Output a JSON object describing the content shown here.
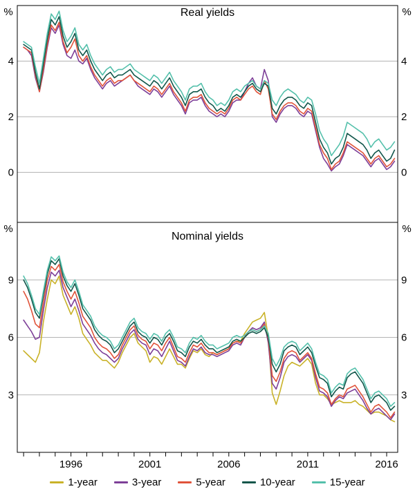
{
  "colors": {
    "grid": "#b3b3b3",
    "frame": "#000000",
    "text": "#000000",
    "background": "#ffffff"
  },
  "legend": {
    "items": [
      {
        "label": "1-year",
        "color": "#c9b228"
      },
      {
        "label": "3-year",
        "color": "#7d3f98"
      },
      {
        "label": "5-year",
        "color": "#e0533a"
      },
      {
        "label": "10-year",
        "color": "#11564a"
      },
      {
        "label": "15-year",
        "color": "#54c0ab"
      }
    ]
  },
  "chart_data": [
    {
      "type": "line",
      "title": "Real yields",
      "unit": "%",
      "xlim": [
        1992.6,
        2016.7
      ],
      "ylim": [
        -1.8,
        6.0
      ],
      "yticks": [
        0,
        2,
        4
      ],
      "xticks": [
        1996,
        2001,
        2006,
        2011,
        2016
      ],
      "x": [
        1993,
        1993.25,
        1993.5,
        1993.75,
        1994,
        1994.25,
        1994.5,
        1994.75,
        1995,
        1995.25,
        1995.5,
        1995.75,
        1996,
        1996.25,
        1996.5,
        1996.75,
        1997,
        1997.25,
        1997.5,
        1997.75,
        1998,
        1998.25,
        1998.5,
        1998.75,
        1999,
        1999.25,
        1999.5,
        1999.75,
        2000,
        2000.25,
        2000.5,
        2000.75,
        2001,
        2001.25,
        2001.5,
        2001.75,
        2002,
        2002.25,
        2002.5,
        2002.75,
        2003,
        2003.25,
        2003.5,
        2003.75,
        2004,
        2004.25,
        2004.5,
        2004.75,
        2005,
        2005.25,
        2005.5,
        2005.75,
        2006,
        2006.25,
        2006.5,
        2006.75,
        2007,
        2007.25,
        2007.5,
        2007.75,
        2008,
        2008.25,
        2008.5,
        2008.75,
        2009,
        2009.25,
        2009.5,
        2009.75,
        2010,
        2010.25,
        2010.5,
        2010.75,
        2011,
        2011.25,
        2011.5,
        2011.75,
        2012,
        2012.25,
        2012.5,
        2012.75,
        2013,
        2013.25,
        2013.5,
        2013.75,
        2014,
        2014.25,
        2014.5,
        2014.75,
        2015,
        2015.25,
        2015.5,
        2015.75,
        2016,
        2016.25,
        2016.5
      ],
      "series": [
        {
          "name": "3-year",
          "color": "#7d3f98",
          "values": [
            4.5,
            4.4,
            4.2,
            3.4,
            2.9,
            3.6,
            4.5,
            5.2,
            5.0,
            5.3,
            4.6,
            4.2,
            4.1,
            4.4,
            4.0,
            3.9,
            4.1,
            3.7,
            3.4,
            3.2,
            3.0,
            3.2,
            3.3,
            3.1,
            3.2,
            3.3,
            3.4,
            3.5,
            3.3,
            3.1,
            3.0,
            2.9,
            2.8,
            3.0,
            2.9,
            2.7,
            2.9,
            3.1,
            2.8,
            2.6,
            2.4,
            2.1,
            2.5,
            2.6,
            2.6,
            2.7,
            2.4,
            2.2,
            2.1,
            2.0,
            2.1,
            2.0,
            2.2,
            2.5,
            2.6,
            2.6,
            2.9,
            3.2,
            3.4,
            3.1,
            3.0,
            3.7,
            3.3,
            2.0,
            1.8,
            2.1,
            2.3,
            2.4,
            2.4,
            2.3,
            2.1,
            2.0,
            2.2,
            2.1,
            1.5,
            0.9,
            0.5,
            0.3,
            0.05,
            0.2,
            0.3,
            0.6,
            1.0,
            0.9,
            0.8,
            0.7,
            0.6,
            0.4,
            0.2,
            0.4,
            0.5,
            0.3,
            0.1,
            0.2,
            0.4
          ]
        },
        {
          "name": "5-year",
          "color": "#e0533a",
          "values": [
            4.5,
            4.4,
            4.3,
            3.5,
            2.9,
            3.7,
            4.6,
            5.3,
            5.1,
            5.4,
            4.7,
            4.3,
            4.5,
            4.8,
            4.2,
            4.0,
            4.2,
            3.8,
            3.5,
            3.3,
            3.1,
            3.3,
            3.4,
            3.2,
            3.3,
            3.3,
            3.4,
            3.5,
            3.3,
            3.2,
            3.1,
            3.0,
            2.9,
            3.1,
            3.0,
            2.8,
            3.0,
            3.2,
            2.9,
            2.7,
            2.5,
            2.2,
            2.6,
            2.7,
            2.7,
            2.8,
            2.5,
            2.3,
            2.2,
            2.1,
            2.2,
            2.1,
            2.3,
            2.6,
            2.7,
            2.6,
            2.8,
            3.0,
            3.1,
            2.9,
            2.8,
            3.3,
            3.0,
            2.1,
            1.9,
            2.2,
            2.4,
            2.5,
            2.5,
            2.4,
            2.2,
            2.1,
            2.3,
            2.2,
            1.6,
            1.0,
            0.7,
            0.5,
            0.1,
            0.3,
            0.4,
            0.7,
            1.1,
            1.0,
            0.9,
            0.8,
            0.7,
            0.5,
            0.3,
            0.5,
            0.6,
            0.4,
            0.2,
            0.3,
            0.5
          ]
        },
        {
          "name": "10-year",
          "color": "#11564a",
          "values": [
            4.6,
            4.5,
            4.4,
            3.6,
            3.0,
            3.9,
            4.8,
            5.5,
            5.3,
            5.6,
            4.9,
            4.5,
            4.7,
            5.0,
            4.4,
            4.2,
            4.4,
            4.0,
            3.7,
            3.5,
            3.3,
            3.5,
            3.6,
            3.4,
            3.5,
            3.5,
            3.6,
            3.7,
            3.5,
            3.4,
            3.3,
            3.2,
            3.1,
            3.3,
            3.2,
            3.0,
            3.2,
            3.4,
            3.1,
            2.9,
            2.7,
            2.4,
            2.8,
            2.9,
            2.9,
            3.0,
            2.7,
            2.5,
            2.4,
            2.2,
            2.3,
            2.2,
            2.4,
            2.7,
            2.8,
            2.7,
            2.9,
            3.1,
            3.2,
            3.0,
            2.9,
            3.2,
            3.1,
            2.3,
            2.1,
            2.4,
            2.6,
            2.7,
            2.7,
            2.6,
            2.4,
            2.3,
            2.5,
            2.4,
            1.8,
            1.2,
            0.9,
            0.7,
            0.3,
            0.5,
            0.6,
            0.9,
            1.4,
            1.3,
            1.2,
            1.1,
            1.0,
            0.8,
            0.5,
            0.7,
            0.8,
            0.6,
            0.4,
            0.5,
            0.8
          ]
        },
        {
          "name": "15-year",
          "color": "#54c0ab",
          "values": [
            4.7,
            4.6,
            4.5,
            3.8,
            3.2,
            4.1,
            5.0,
            5.7,
            5.5,
            5.8,
            5.1,
            4.7,
            4.9,
            5.2,
            4.6,
            4.4,
            4.6,
            4.2,
            3.9,
            3.7,
            3.5,
            3.7,
            3.8,
            3.6,
            3.7,
            3.7,
            3.8,
            3.9,
            3.7,
            3.6,
            3.5,
            3.4,
            3.3,
            3.5,
            3.4,
            3.2,
            3.4,
            3.6,
            3.3,
            3.1,
            2.9,
            2.6,
            3.0,
            3.1,
            3.1,
            3.2,
            2.9,
            2.7,
            2.6,
            2.4,
            2.5,
            2.4,
            2.6,
            2.9,
            3.0,
            2.9,
            3.1,
            3.2,
            3.3,
            3.1,
            3.0,
            3.3,
            3.2,
            2.6,
            2.4,
            2.7,
            2.9,
            3.0,
            2.9,
            2.8,
            2.6,
            2.5,
            2.7,
            2.6,
            2.1,
            1.5,
            1.2,
            1.0,
            0.6,
            0.8,
            1.0,
            1.3,
            1.8,
            1.7,
            1.6,
            1.5,
            1.4,
            1.2,
            0.9,
            1.1,
            1.2,
            1.0,
            0.8,
            0.9,
            1.1
          ]
        }
      ]
    },
    {
      "type": "line",
      "title": "Nominal yields",
      "unit": "%",
      "xlim": [
        1992.6,
        2016.7
      ],
      "ylim": [
        0,
        12
      ],
      "yticks": [
        3,
        6,
        9
      ],
      "xticks": [
        1996,
        2001,
        2006,
        2011,
        2016
      ],
      "x": [
        1993,
        1993.25,
        1993.5,
        1993.75,
        1994,
        1994.25,
        1994.5,
        1994.75,
        1995,
        1995.25,
        1995.5,
        1995.75,
        1996,
        1996.25,
        1996.5,
        1996.75,
        1997,
        1997.25,
        1997.5,
        1997.75,
        1998,
        1998.25,
        1998.5,
        1998.75,
        1999,
        1999.25,
        1999.5,
        1999.75,
        2000,
        2000.25,
        2000.5,
        2000.75,
        2001,
        2001.25,
        2001.5,
        2001.75,
        2002,
        2002.25,
        2002.5,
        2002.75,
        2003,
        2003.25,
        2003.5,
        2003.75,
        2004,
        2004.25,
        2004.5,
        2004.75,
        2005,
        2005.25,
        2005.5,
        2005.75,
        2006,
        2006.25,
        2006.5,
        2006.75,
        2007,
        2007.25,
        2007.5,
        2007.75,
        2008,
        2008.25,
        2008.5,
        2008.75,
        2009,
        2009.25,
        2009.5,
        2009.75,
        2010,
        2010.25,
        2010.5,
        2010.75,
        2011,
        2011.25,
        2011.5,
        2011.75,
        2012,
        2012.25,
        2012.5,
        2012.75,
        2013,
        2013.25,
        2013.5,
        2013.75,
        2014,
        2014.25,
        2014.5,
        2014.75,
        2015,
        2015.25,
        2015.5,
        2015.75,
        2016,
        2016.25,
        2016.5
      ],
      "series": [
        {
          "name": "1-year",
          "color": "#c9b228",
          "values": [
            5.3,
            5.1,
            4.9,
            4.7,
            5.2,
            6.8,
            8.0,
            9.0,
            8.8,
            9.2,
            8.2,
            7.7,
            7.2,
            7.6,
            7.0,
            6.2,
            5.9,
            5.6,
            5.2,
            5.0,
            4.8,
            4.8,
            4.6,
            4.4,
            4.7,
            5.2,
            5.6,
            6.0,
            6.2,
            5.7,
            5.5,
            5.3,
            4.7,
            5.0,
            4.9,
            4.6,
            5.0,
            5.4,
            5.0,
            4.6,
            4.6,
            4.4,
            4.9,
            5.3,
            5.2,
            5.4,
            5.1,
            5.0,
            5.2,
            5.1,
            5.2,
            5.3,
            5.4,
            5.7,
            5.8,
            5.8,
            6.2,
            6.5,
            6.8,
            6.9,
            7.0,
            7.3,
            6.0,
            3.1,
            2.5,
            3.2,
            4.0,
            4.5,
            4.7,
            4.6,
            4.5,
            4.7,
            4.9,
            4.6,
            3.6,
            3.0,
            3.0,
            2.8,
            2.5,
            2.6,
            2.7,
            2.6,
            2.6,
            2.6,
            2.7,
            2.5,
            2.4,
            2.2,
            2.0,
            2.1,
            2.1,
            2.0,
            1.9,
            1.7,
            1.6
          ]
        },
        {
          "name": "3-year",
          "color": "#7d3f98",
          "values": [
            6.9,
            6.6,
            6.3,
            5.9,
            6.0,
            7.4,
            8.6,
            9.4,
            9.2,
            9.5,
            8.6,
            8.1,
            7.6,
            8.0,
            7.4,
            6.7,
            6.4,
            6.1,
            5.7,
            5.4,
            5.2,
            5.1,
            4.9,
            4.7,
            4.9,
            5.4,
            5.8,
            6.2,
            6.4,
            5.9,
            5.7,
            5.6,
            5.1,
            5.4,
            5.3,
            5.0,
            5.4,
            5.8,
            5.3,
            4.8,
            4.7,
            4.5,
            5.0,
            5.4,
            5.3,
            5.5,
            5.2,
            5.1,
            5.1,
            5.0,
            5.1,
            5.2,
            5.3,
            5.6,
            5.7,
            5.6,
            6.0,
            6.3,
            6.5,
            6.4,
            6.5,
            6.8,
            5.7,
            3.6,
            3.3,
            3.9,
            4.7,
            5.0,
            5.1,
            5.0,
            4.7,
            4.9,
            5.1,
            4.8,
            3.9,
            3.2,
            3.1,
            2.9,
            2.4,
            2.7,
            2.9,
            2.8,
            3.1,
            3.2,
            3.3,
            3.0,
            2.7,
            2.3,
            2.0,
            2.2,
            2.3,
            2.1,
            1.9,
            1.7,
            2.0
          ]
        },
        {
          "name": "5-year",
          "color": "#e0533a",
          "values": [
            8.4,
            8.0,
            7.4,
            6.7,
            6.5,
            7.8,
            9.0,
            9.7,
            9.5,
            9.8,
            8.9,
            8.4,
            8.0,
            8.4,
            7.8,
            7.1,
            6.8,
            6.5,
            6.0,
            5.7,
            5.5,
            5.4,
            5.2,
            4.9,
            5.1,
            5.6,
            6.0,
            6.4,
            6.6,
            6.1,
            5.9,
            5.8,
            5.4,
            5.7,
            5.6,
            5.3,
            5.7,
            6.0,
            5.5,
            5.0,
            4.9,
            4.7,
            5.2,
            5.6,
            5.5,
            5.7,
            5.4,
            5.2,
            5.2,
            5.1,
            5.2,
            5.3,
            5.4,
            5.7,
            5.8,
            5.7,
            6.0,
            6.3,
            6.4,
            6.3,
            6.4,
            6.7,
            5.9,
            4.0,
            3.7,
            4.2,
            4.9,
            5.2,
            5.3,
            5.2,
            4.8,
            5.0,
            5.2,
            4.9,
            4.1,
            3.4,
            3.3,
            3.1,
            2.5,
            2.8,
            3.0,
            2.9,
            3.3,
            3.4,
            3.5,
            3.2,
            2.9,
            2.5,
            2.1,
            2.4,
            2.5,
            2.3,
            2.1,
            1.8,
            2.1
          ]
        },
        {
          "name": "10-year",
          "color": "#11564a",
          "values": [
            9.0,
            8.6,
            8.0,
            7.3,
            7.0,
            8.2,
            9.3,
            10.0,
            9.8,
            10.1,
            9.2,
            8.7,
            8.4,
            8.8,
            8.2,
            7.5,
            7.2,
            6.9,
            6.4,
            6.1,
            5.9,
            5.8,
            5.6,
            5.2,
            5.4,
            5.8,
            6.2,
            6.6,
            6.8,
            6.3,
            6.1,
            6.0,
            5.7,
            6.0,
            5.9,
            5.6,
            6.0,
            6.2,
            5.8,
            5.3,
            5.2,
            5.0,
            5.5,
            5.8,
            5.7,
            5.9,
            5.6,
            5.4,
            5.4,
            5.2,
            5.3,
            5.4,
            5.5,
            5.8,
            5.9,
            5.8,
            6.0,
            6.2,
            6.3,
            6.2,
            6.3,
            6.5,
            6.0,
            4.6,
            4.2,
            4.6,
            5.3,
            5.5,
            5.6,
            5.5,
            5.1,
            5.3,
            5.5,
            5.2,
            4.5,
            3.9,
            3.8,
            3.6,
            2.9,
            3.2,
            3.4,
            3.3,
            3.9,
            4.1,
            4.2,
            3.9,
            3.6,
            3.1,
            2.6,
            2.9,
            3.0,
            2.8,
            2.6,
            2.2,
            2.4
          ]
        },
        {
          "name": "15-year",
          "color": "#54c0ab",
          "values": [
            9.2,
            8.8,
            8.2,
            7.5,
            7.2,
            8.4,
            9.5,
            10.2,
            10.0,
            10.25,
            9.4,
            8.9,
            8.6,
            9.0,
            8.4,
            7.7,
            7.4,
            7.1,
            6.6,
            6.3,
            6.1,
            6.0,
            5.8,
            5.4,
            5.6,
            6.0,
            6.4,
            6.8,
            7.0,
            6.5,
            6.3,
            6.2,
            5.9,
            6.2,
            6.1,
            5.8,
            6.2,
            6.4,
            6.0,
            5.5,
            5.4,
            5.2,
            5.7,
            6.0,
            5.9,
            6.1,
            5.8,
            5.6,
            5.6,
            5.4,
            5.5,
            5.6,
            5.7,
            6.0,
            6.1,
            6.0,
            6.1,
            6.3,
            6.4,
            6.3,
            6.4,
            6.6,
            6.2,
            4.9,
            4.5,
            4.9,
            5.5,
            5.7,
            5.8,
            5.7,
            5.3,
            5.5,
            5.7,
            5.4,
            4.7,
            4.1,
            4.0,
            3.8,
            3.1,
            3.4,
            3.6,
            3.5,
            4.1,
            4.3,
            4.4,
            4.1,
            3.8,
            3.3,
            2.8,
            3.1,
            3.2,
            3.0,
            2.8,
            2.4,
            2.6
          ]
        }
      ]
    }
  ]
}
